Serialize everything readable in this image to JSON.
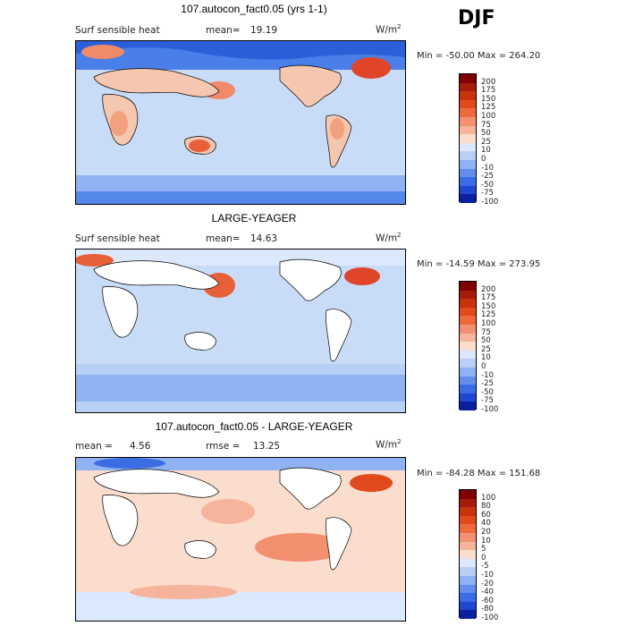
{
  "season": "DJF",
  "units": "W/m",
  "units_sup": "2",
  "panels": [
    {
      "title": "107.autocon_fact0.05 (yrs 1-1)",
      "left_label": "Surf sensible heat",
      "stat_label": "mean=",
      "stat_value": "19.19",
      "min_max": "Min = -50.00 Max = 264.20",
      "levels": [
        "200",
        "175",
        "150",
        "125",
        "100",
        "75",
        "50",
        "25",
        "10",
        "0",
        "-10",
        "-25",
        "-50",
        "-75",
        "-100"
      ]
    },
    {
      "title": "LARGE-YEAGER",
      "left_label": "Surf sensible heat",
      "stat_label": "mean=",
      "stat_value": "14.63",
      "min_max": "Min = -14.59 Max = 273.95",
      "levels": [
        "200",
        "175",
        "150",
        "125",
        "100",
        "75",
        "50",
        "25",
        "10",
        "0",
        "-10",
        "-25",
        "-50",
        "-75",
        "-100"
      ]
    },
    {
      "title": "107.autocon_fact0.05 - LARGE-YEAGER",
      "left_label": "mean =",
      "left_value": "4.56",
      "stat_label": "rmse =",
      "stat_value": "13.25",
      "min_max": "Min = -84.28 Max = 151.68",
      "levels": [
        "100",
        "80",
        "60",
        "40",
        "20",
        "10",
        "5",
        "0",
        "-5",
        "-10",
        "-20",
        "-40",
        "-60",
        "-80",
        "-100"
      ]
    }
  ],
  "chart_data": {
    "type": "heatmap",
    "title": "DJF",
    "variable": "Surf sensible heat",
    "units": "W/m2",
    "maps": [
      {
        "title": "107.autocon_fact0.05 (yrs 1-1)",
        "mean": 19.19,
        "min": -50.0,
        "max": 264.2
      },
      {
        "title": "LARGE-YEAGER",
        "mean": 14.63,
        "min": -14.59,
        "max": 273.95
      },
      {
        "title": "107.autocon_fact0.05 - LARGE-YEAGER",
        "mean": 4.56,
        "rmse": 13.25,
        "min": -84.28,
        "max": 151.68
      }
    ]
  }
}
